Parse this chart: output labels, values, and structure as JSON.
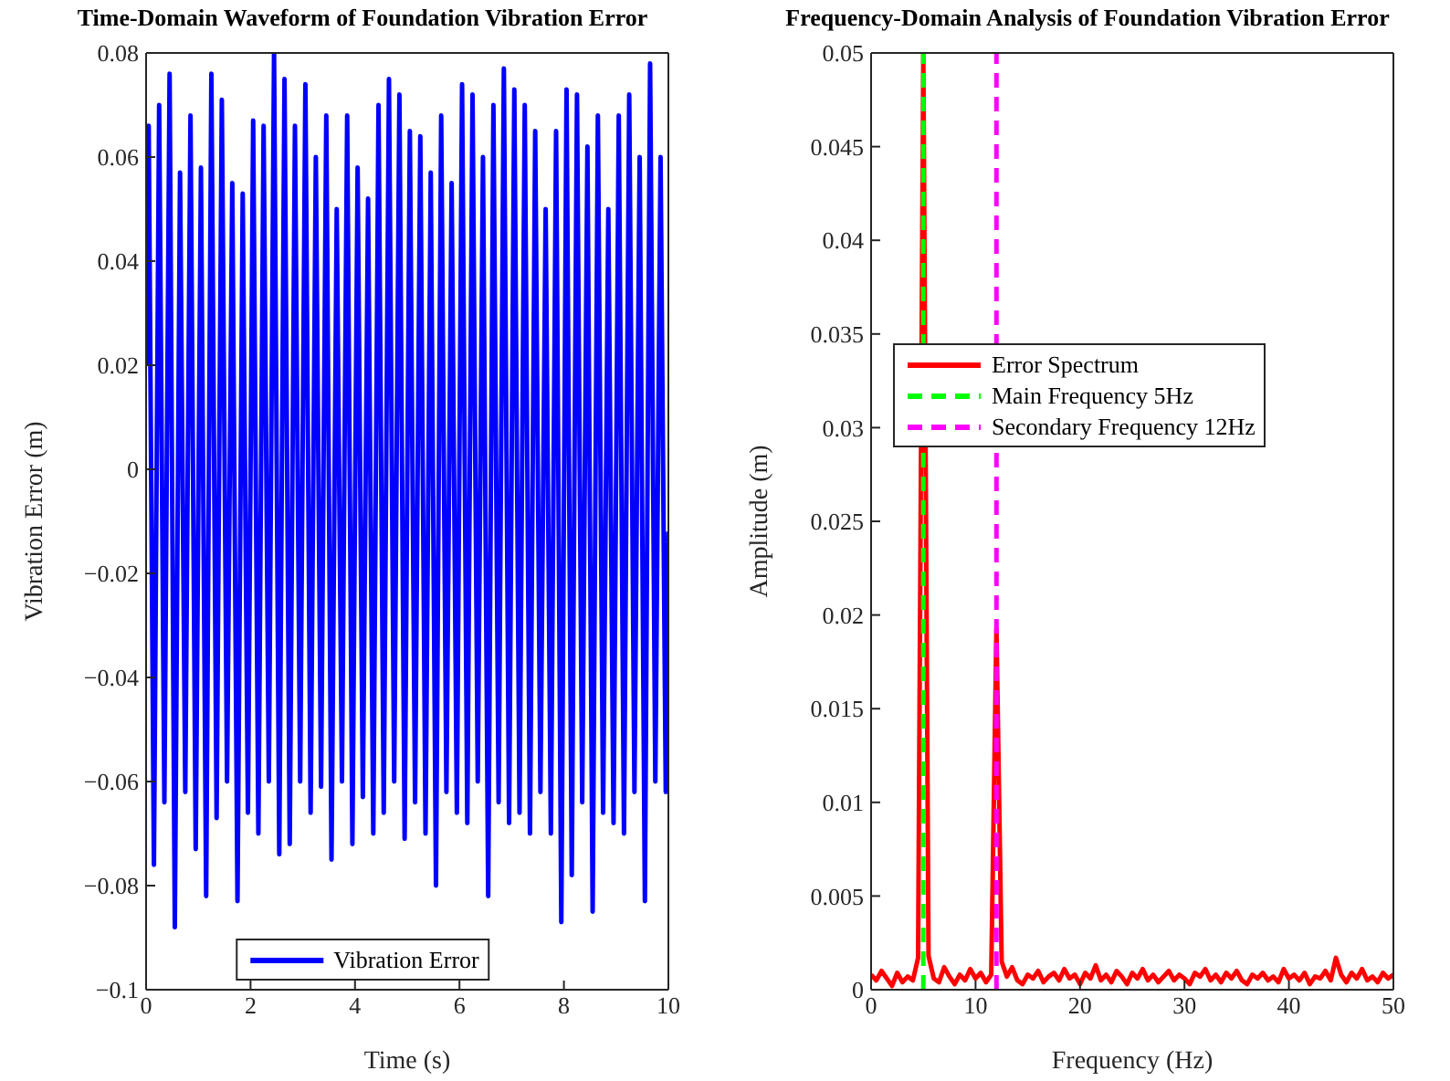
{
  "chart_data": [
    {
      "type": "line",
      "title": "Time-Domain Waveform of Foundation Vibration Error",
      "xlabel": "Time (s)",
      "ylabel": "Vibration Error (m)",
      "xlim": [
        0,
        10
      ],
      "xticks": [
        0,
        2,
        4,
        6,
        8,
        10
      ],
      "ylim": [
        -0.1,
        0.08
      ],
      "yticks": [
        -0.1,
        -0.08,
        -0.06,
        -0.04,
        -0.02,
        0,
        0.02,
        0.04,
        0.06,
        0.08
      ],
      "legend": "bottom",
      "line_style": "solid",
      "series": [
        {
          "name": "Vibration Error",
          "color": "#0000ff",
          "x": [
            0,
            0.05,
            0.15,
            0.25,
            0.35,
            0.45,
            0.55,
            0.65,
            0.75,
            0.85,
            0.95,
            1.05,
            1.15,
            1.25,
            1.35,
            1.45,
            1.55,
            1.65,
            1.75,
            1.85,
            1.95,
            2.05,
            2.15,
            2.25,
            2.35,
            2.45,
            2.55,
            2.65,
            2.75,
            2.85,
            2.95,
            3.05,
            3.15,
            3.25,
            3.35,
            3.45,
            3.55,
            3.65,
            3.75,
            3.85,
            3.95,
            4.05,
            4.15,
            4.25,
            4.35,
            4.45,
            4.55,
            4.65,
            4.75,
            4.85,
            4.95,
            5.05,
            5.15,
            5.25,
            5.35,
            5.45,
            5.55,
            5.65,
            5.75,
            5.85,
            5.95,
            6.05,
            6.15,
            6.25,
            6.35,
            6.45,
            6.55,
            6.65,
            6.75,
            6.85,
            6.95,
            7.05,
            7.15,
            7.25,
            7.35,
            7.45,
            7.55,
            7.65,
            7.75,
            7.85,
            7.95,
            8.05,
            8.15,
            8.25,
            8.35,
            8.45,
            8.55,
            8.65,
            8.75,
            8.85,
            8.95,
            9.05,
            9.15,
            9.25,
            9.35,
            9.45,
            9.55,
            9.65,
            9.75,
            9.85,
            9.95,
            10
          ],
          "values": [
            0.02,
            0.066,
            -0.076,
            0.07,
            -0.064,
            0.076,
            -0.088,
            0.057,
            -0.062,
            0.068,
            -0.073,
            0.058,
            -0.082,
            0.076,
            -0.067,
            0.071,
            -0.06,
            0.055,
            -0.083,
            0.053,
            -0.066,
            0.067,
            -0.07,
            0.066,
            -0.06,
            0.08,
            -0.074,
            0.075,
            -0.072,
            0.066,
            -0.06,
            0.074,
            -0.066,
            0.06,
            -0.061,
            0.068,
            -0.075,
            0.05,
            -0.06,
            0.068,
            -0.072,
            0.058,
            -0.063,
            0.052,
            -0.07,
            0.07,
            -0.066,
            0.075,
            -0.06,
            0.072,
            -0.071,
            0.065,
            -0.064,
            0.064,
            -0.07,
            0.057,
            -0.08,
            0.068,
            -0.062,
            0.055,
            -0.066,
            0.074,
            -0.068,
            0.072,
            -0.06,
            0.06,
            -0.082,
            0.07,
            -0.064,
            0.077,
            -0.068,
            0.073,
            -0.066,
            0.07,
            -0.07,
            0.065,
            -0.062,
            0.05,
            -0.07,
            0.065,
            -0.087,
            0.073,
            -0.078,
            0.072,
            -0.064,
            0.062,
            -0.085,
            0.068,
            -0.066,
            0.05,
            -0.068,
            0.068,
            -0.07,
            0.072,
            -0.062,
            0.06,
            -0.083,
            0.078,
            -0.06,
            0.06,
            -0.062,
            -0.012
          ]
        }
      ]
    },
    {
      "type": "line",
      "title": "Frequency-Domain Analysis of Foundation Vibration Error",
      "xlabel": "Frequency (Hz)",
      "ylabel": "Amplitude (m)",
      "xlim": [
        0,
        50
      ],
      "xticks": [
        0,
        10,
        20,
        30,
        40,
        50
      ],
      "ylim": [
        0,
        0.05
      ],
      "yticks": [
        0,
        0.005,
        0.01,
        0.015,
        0.02,
        0.025,
        0.03,
        0.035,
        0.04,
        0.045,
        0.05
      ],
      "legend": "center left",
      "line_style": "solid",
      "series": [
        {
          "name": "Error Spectrum",
          "color": "#ff0000",
          "x": [
            0,
            0.5,
            1,
            1.5,
            2,
            2.5,
            3,
            3.5,
            4,
            4.5,
            5,
            5.5,
            6,
            6.5,
            7,
            7.5,
            8,
            8.5,
            9,
            9.5,
            10,
            10.5,
            11,
            11.5,
            12,
            12.5,
            13,
            13.5,
            14,
            14.5,
            15,
            15.5,
            16,
            16.5,
            17,
            17.5,
            18,
            18.5,
            19,
            19.5,
            20,
            20.5,
            21,
            21.5,
            22,
            22.5,
            23,
            23.5,
            24,
            24.5,
            25,
            25.5,
            26,
            26.5,
            27,
            27.5,
            28,
            28.5,
            29,
            29.5,
            30,
            30.5,
            31,
            31.5,
            32,
            32.5,
            33,
            33.5,
            34,
            34.5,
            35,
            35.5,
            36,
            36.5,
            37,
            37.5,
            38,
            38.5,
            39,
            39.5,
            40,
            40.5,
            41,
            41.5,
            42,
            42.5,
            43,
            43.5,
            44,
            44.5,
            45,
            45.5,
            46,
            46.5,
            47,
            47.5,
            48,
            48.5,
            49,
            49.5,
            50
          ],
          "values": [
            0.0008,
            0.0005,
            0.001,
            0.0006,
            0.0002,
            0.0009,
            0.0004,
            0.0007,
            0.0005,
            0.0017,
            0.05,
            0.0018,
            0.0006,
            0.0004,
            0.0012,
            0.0007,
            0.0003,
            0.0008,
            0.0005,
            0.0011,
            0.0006,
            0.0009,
            0.0004,
            0.0008,
            0.0193,
            0.0015,
            0.0007,
            0.0012,
            0.0005,
            0.0003,
            0.0008,
            0.0006,
            0.001,
            0.0004,
            0.0007,
            0.0009,
            0.0005,
            0.0011,
            0.0006,
            0.0008,
            0.0003,
            0.0009,
            0.0006,
            0.0013,
            0.0005,
            0.0008,
            0.0004,
            0.001,
            0.0007,
            0.0003,
            0.0009,
            0.0006,
            0.0011,
            0.0005,
            0.0008,
            0.0004,
            0.0007,
            0.001,
            0.0005,
            0.0008,
            0.0006,
            0.0003,
            0.0009,
            0.0007,
            0.0011,
            0.0005,
            0.0008,
            0.0004,
            0.0009,
            0.0006,
            0.001,
            0.0005,
            0.0003,
            0.0008,
            0.0006,
            0.0009,
            0.0005,
            0.0007,
            0.0004,
            0.0011,
            0.0006,
            0.0008,
            0.0005,
            0.0009,
            0.0003,
            0.0007,
            0.0006,
            0.001,
            0.0005,
            0.0017,
            0.0008,
            0.0004,
            0.0009,
            0.0006,
            0.0011,
            0.0005,
            0.0007,
            0.0004,
            0.0009,
            0.0006,
            0.0008
          ]
        }
      ],
      "ref_lines": [
        {
          "axis": "x",
          "value": 5,
          "label": "Main Frequency 5Hz",
          "color": "#00ff00",
          "line_style": "dashed"
        },
        {
          "axis": "x",
          "value": 12,
          "label": "Secondary Frequency 12Hz",
          "color": "#ff00ff",
          "line_style": "dashed"
        }
      ]
    }
  ]
}
